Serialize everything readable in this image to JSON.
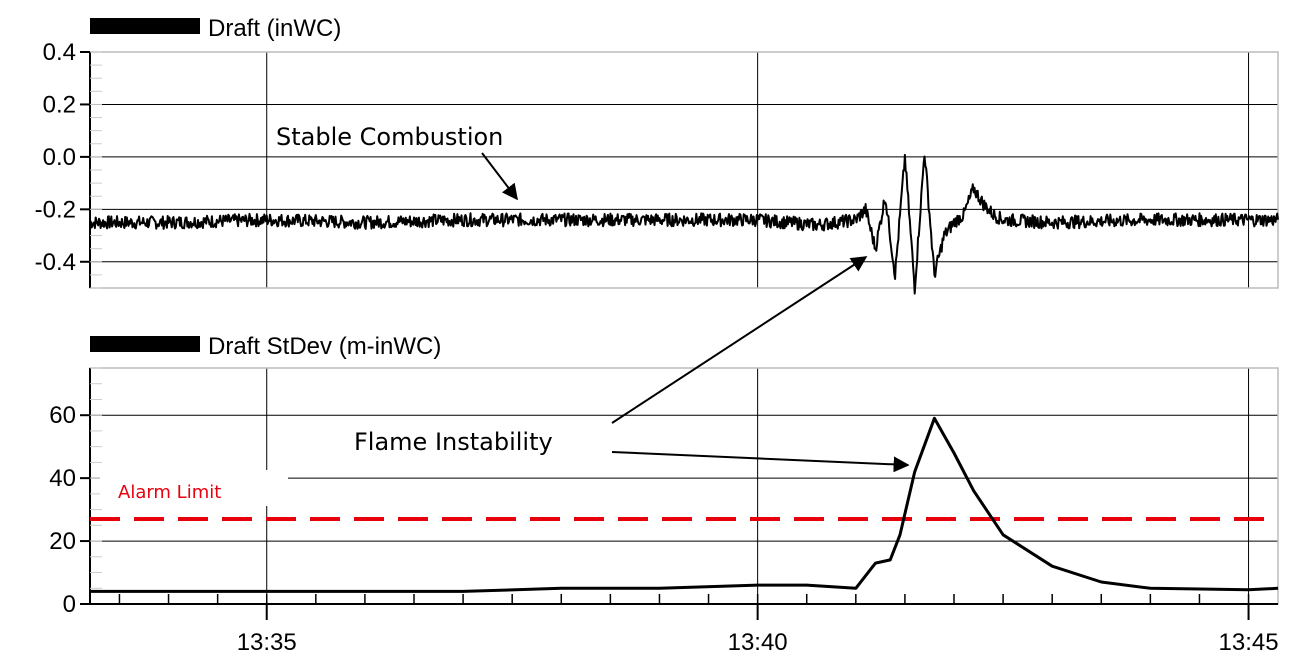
{
  "chart_data": [
    {
      "type": "line",
      "series": [
        {
          "name": "Draft (inWC)",
          "x": [
            "13:33.2",
            "13:34",
            "13:35",
            "13:36",
            "13:37",
            "13:38",
            "13:39",
            "13:40",
            "13:40.6",
            "13:41",
            "13:41.1",
            "13:41.2",
            "13:41.3",
            "13:41.4",
            "13:41.5",
            "13:41.6",
            "13:41.7",
            "13:41.8",
            "13:41.9",
            "13:42",
            "13:42.1",
            "13:42.2",
            "13:42.3",
            "13:42.4",
            "13:42.5",
            "13:43",
            "13:44",
            "13:45",
            "13:45.3"
          ],
          "y": [
            -0.25,
            -0.25,
            -0.24,
            -0.25,
            -0.24,
            -0.24,
            -0.24,
            -0.24,
            -0.26,
            -0.24,
            -0.2,
            -0.35,
            -0.15,
            -0.45,
            0.0,
            -0.5,
            0.02,
            -0.45,
            -0.3,
            -0.25,
            -0.22,
            -0.12,
            -0.18,
            -0.22,
            -0.24,
            -0.25,
            -0.24,
            -0.24,
            -0.24
          ]
        }
      ],
      "ylim": [
        -0.5,
        0.4
      ],
      "yticks": [
        "0.4",
        "0.2",
        "0.0",
        "-0.2",
        "-0.4"
      ],
      "grid": true,
      "legend_position": "top-left",
      "annotations": [
        {
          "text": "Stable Combustion",
          "points_to": [
            "13:38",
            -0.24
          ]
        }
      ]
    },
    {
      "type": "line",
      "series": [
        {
          "name": "Draft StDev (m-inWC)",
          "x": [
            "13:33.2",
            "13:34",
            "13:35",
            "13:36",
            "13:37",
            "13:38",
            "13:39",
            "13:40",
            "13:40.5",
            "13:41",
            "13:41.2",
            "13:41.35",
            "13:41.45",
            "13:41.6",
            "13:41.8",
            "13:42",
            "13:42.2",
            "13:42.5",
            "13:43",
            "13:43.5",
            "13:44",
            "13:45",
            "13:45.3"
          ],
          "y": [
            4,
            4,
            4,
            4,
            4,
            5,
            5,
            6,
            6,
            5,
            13,
            14,
            22,
            42,
            59,
            48,
            36,
            22,
            12,
            7,
            5,
            4.5,
            5
          ]
        },
        {
          "name": "Alarm Limit",
          "x": [
            "13:33.2",
            "13:45.3"
          ],
          "y": [
            27,
            27
          ]
        }
      ],
      "ylim": [
        0,
        75
      ],
      "yticks": [
        "60",
        "40",
        "20",
        "0"
      ],
      "xticks": [
        "13:35",
        "13:40",
        "13:45"
      ],
      "grid": true,
      "legend_position": "top-left",
      "annotations": [
        {
          "text": "Flame Instability",
          "points_to": [
            "13:41.6",
            50
          ]
        },
        {
          "text": "Alarm Limit",
          "color": "#e8000d"
        }
      ]
    }
  ],
  "colors": {
    "trace": "#000000",
    "alarm": "#e8000d",
    "grid": "#000000"
  }
}
